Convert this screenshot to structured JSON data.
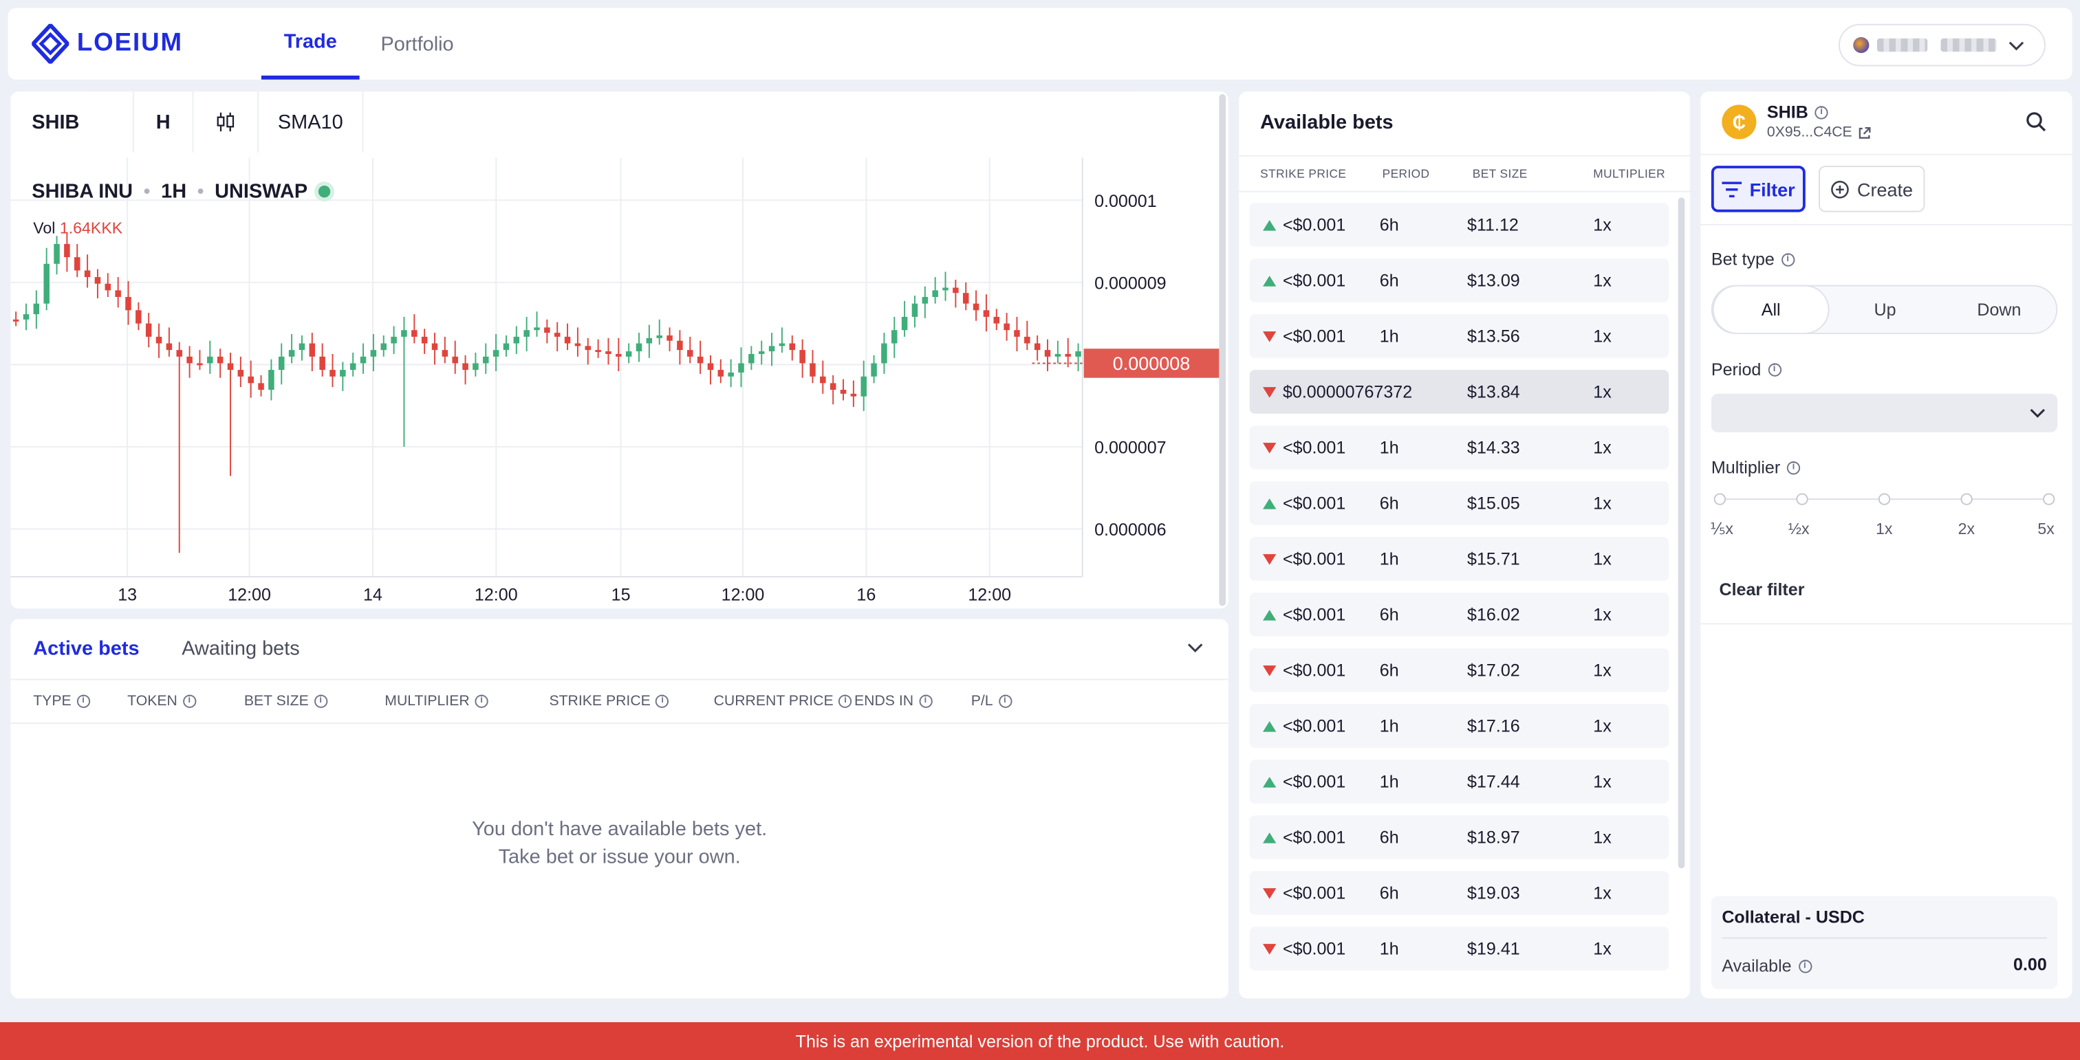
{
  "header": {
    "logo_text": "LOEIUM",
    "tabs": [
      {
        "label": "Trade",
        "active": true
      },
      {
        "label": "Portfolio",
        "active": false
      }
    ]
  },
  "chart_toolbar": {
    "symbol": "SHIB",
    "interval": "H",
    "indicator": "SMA10"
  },
  "chart_header": {
    "name": "SHIBA INU",
    "timeframe": "1H",
    "exchange": "UNISWAP",
    "vol_label": "Vol",
    "vol_value": "1.64KKK"
  },
  "chart_data": {
    "type": "candlestick",
    "y_ticks": [
      "0.00001",
      "0.000009",
      "0.000007",
      "0.000006"
    ],
    "x_ticks": [
      "13",
      "12:00",
      "14",
      "12:00",
      "15",
      "12:00",
      "16",
      "12:00"
    ],
    "last_price": "0.000008",
    "colors": {
      "up": "#3fae7a",
      "down": "#e0443c"
    }
  },
  "bets": {
    "tabs": [
      {
        "label": "Active bets",
        "active": true
      },
      {
        "label": "Awaiting bets",
        "active": false
      }
    ],
    "columns": [
      "TYPE",
      "TOKEN",
      "BET SIZE",
      "MULTIPLIER",
      "STRIKE PRICE",
      "CURRENT PRICE",
      "ENDS IN",
      "P/L"
    ],
    "empty_line1": "You don't have available bets yet.",
    "empty_line2": "Take bet or issue your own."
  },
  "available": {
    "title": "Available bets",
    "columns": [
      "STRIKE PRICE",
      "PERIOD",
      "BET SIZE",
      "MULTIPLIER"
    ],
    "rows": [
      {
        "dir": "up",
        "strike": "<$0.001",
        "period": "6h",
        "size": "$11.12",
        "mult": "1x"
      },
      {
        "dir": "up",
        "strike": "<$0.001",
        "period": "6h",
        "size": "$13.09",
        "mult": "1x"
      },
      {
        "dir": "down",
        "strike": "<$0.001",
        "period": "1h",
        "size": "$13.56",
        "mult": "1x"
      },
      {
        "dir": "down",
        "strike": "$0.00000767372",
        "period": "",
        "size": "$13.84",
        "mult": "1x",
        "selected": true
      },
      {
        "dir": "down",
        "strike": "<$0.001",
        "period": "1h",
        "size": "$14.33",
        "mult": "1x"
      },
      {
        "dir": "up",
        "strike": "<$0.001",
        "period": "6h",
        "size": "$15.05",
        "mult": "1x"
      },
      {
        "dir": "down",
        "strike": "<$0.001",
        "period": "1h",
        "size": "$15.71",
        "mult": "1x"
      },
      {
        "dir": "up",
        "strike": "<$0.001",
        "period": "6h",
        "size": "$16.02",
        "mult": "1x"
      },
      {
        "dir": "down",
        "strike": "<$0.001",
        "period": "6h",
        "size": "$17.02",
        "mult": "1x"
      },
      {
        "dir": "up",
        "strike": "<$0.001",
        "period": "1h",
        "size": "$17.16",
        "mult": "1x"
      },
      {
        "dir": "up",
        "strike": "<$0.001",
        "period": "1h",
        "size": "$17.44",
        "mult": "1x"
      },
      {
        "dir": "up",
        "strike": "<$0.001",
        "period": "6h",
        "size": "$18.97",
        "mult": "1x"
      },
      {
        "dir": "down",
        "strike": "<$0.001",
        "period": "6h",
        "size": "$19.03",
        "mult": "1x"
      },
      {
        "dir": "down",
        "strike": "<$0.001",
        "period": "1h",
        "size": "$19.41",
        "mult": "1x"
      }
    ]
  },
  "filter": {
    "token_name": "SHIB",
    "token_addr": "0X95...C4CE",
    "filter_label": "Filter",
    "create_label": "Create",
    "bet_type_label": "Bet type",
    "bet_types": [
      "All",
      "Up",
      "Down"
    ],
    "period_label": "Period",
    "multiplier_label": "Multiplier",
    "multipliers": [
      "⅕x",
      "½x",
      "1x",
      "2x",
      "5x"
    ],
    "clear_label": "Clear filter",
    "collateral_title": "Collateral - USDC",
    "available_label": "Available",
    "available_value": "0.00"
  },
  "banner": "This is an experimental version of the product. Use with caution."
}
